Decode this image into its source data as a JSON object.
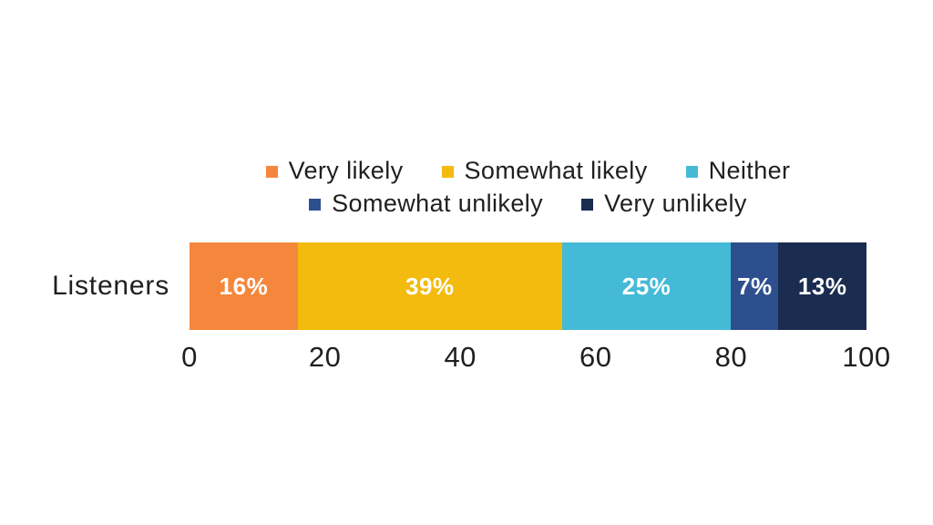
{
  "chart_data": {
    "type": "bar",
    "orientation": "horizontal",
    "stacked": true,
    "title": "",
    "xlabel": "",
    "ylabel": "",
    "categories": [
      "Listeners"
    ],
    "series": [
      {
        "name": "Very likely",
        "values": [
          16
        ],
        "color": "#F5873C"
      },
      {
        "name": "Somewhat likely",
        "values": [
          39
        ],
        "color": "#F2BB0D"
      },
      {
        "name": "Neither",
        "values": [
          25
        ],
        "color": "#45BAD7"
      },
      {
        "name": "Somewhat unlikely",
        "values": [
          7
        ],
        "color": "#2E4F8E"
      },
      {
        "name": "Very unlikely",
        "values": [
          13
        ],
        "color": "#1A2C4F"
      }
    ],
    "data_labels": [
      "16%",
      "39%",
      "25%",
      "7%",
      "13%"
    ],
    "xlim": [
      0,
      100
    ],
    "x_ticks": [
      "0",
      "20",
      "40",
      "60",
      "80",
      "100"
    ],
    "grid": false,
    "legend_position": "top",
    "legend_rows": [
      [
        0,
        1,
        2
      ],
      [
        3,
        4
      ]
    ],
    "background_color": "#FFFFFF",
    "text_color": "#1F1F1F",
    "data_label_color": "#FFFFFF"
  }
}
